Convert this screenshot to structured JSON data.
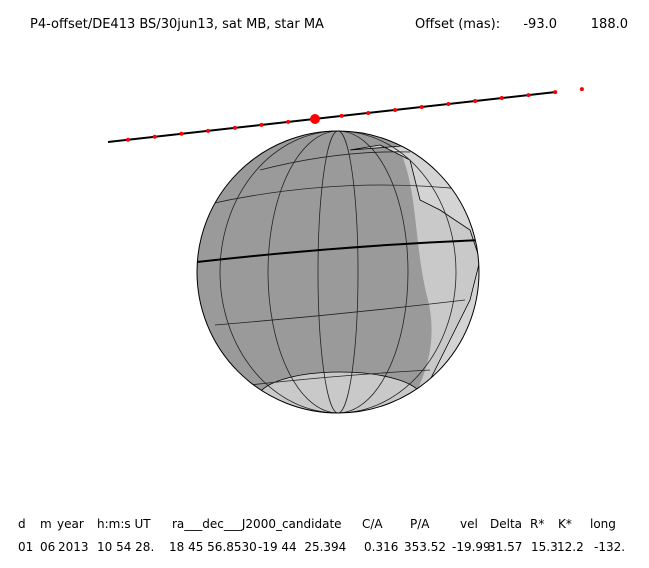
{
  "header": {
    "title": "P4-offset/DE413 BS/30jun13, sat MB, star MA",
    "offset_label": "Offset (mas):",
    "offset_values": [
      "-93.0",
      "188.0"
    ]
  },
  "table": {
    "headers": [
      "d",
      "m",
      "year",
      "h:m:s UT",
      "ra___dec___J2000_candidate",
      "C/A",
      "P/A",
      "vel",
      "Delta",
      "R*",
      "K*",
      "long"
    ],
    "row": [
      "01",
      "06",
      "2013",
      "10 54 28.",
      "18 45 56.8530",
      "-19 44  25.394",
      "0.316",
      "353.52",
      "-19.99",
      "31.57",
      "15.3",
      "12.2",
      "-132."
    ]
  }
}
